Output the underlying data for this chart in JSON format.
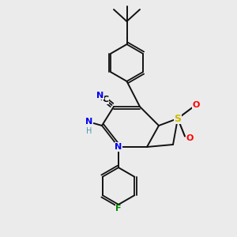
{
  "bg_color": "#ebebeb",
  "atom_colors": {
    "C": "#000000",
    "N": "#0000ee",
    "O": "#ff0000",
    "S": "#ccbb00",
    "F": "#008800",
    "H": "#4499aa",
    "NH": "#4499aa"
  },
  "bond_color": "#111111"
}
